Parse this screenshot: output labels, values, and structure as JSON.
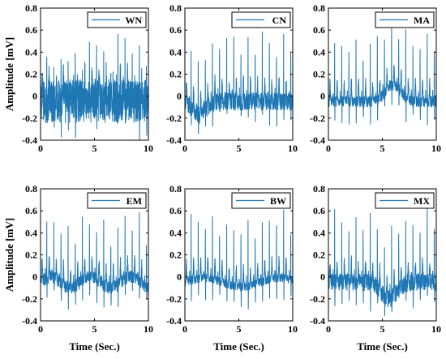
{
  "figure": {
    "line_color": "#1f77b4",
    "ylabel": "Amplitude [mV]",
    "xlabel": "Time (Sec.)"
  },
  "chart_data": [
    {
      "type": "line",
      "panel": "top-left",
      "series": [
        {
          "name": "WN"
        }
      ],
      "xlim": [
        0,
        10
      ],
      "ylim": [
        -0.4,
        0.8
      ],
      "xticks": [
        "0",
        "5",
        "10"
      ],
      "yticks": [
        "-0.4",
        "-0.2",
        "0",
        "0.2",
        "0.4",
        "0.6",
        "0.8"
      ],
      "r_peak_amplitude": 0.5,
      "noise_amplitude": 0.2,
      "legend": "top-right"
    },
    {
      "type": "line",
      "panel": "top-middle",
      "series": [
        {
          "name": "CN"
        }
      ],
      "xlim": [
        0,
        10
      ],
      "ylim": [
        -0.4,
        0.8
      ],
      "xticks": [
        "0",
        "5",
        "10"
      ],
      "yticks": [
        "-0.4",
        "-0.2",
        "0",
        "0.2",
        "0.4",
        "0.6",
        "0.8"
      ],
      "r_peak_amplitude": 0.6,
      "noise_amplitude": 0.08,
      "legend": "top-right"
    },
    {
      "type": "line",
      "panel": "top-right",
      "series": [
        {
          "name": "MA"
        }
      ],
      "xlim": [
        0,
        10
      ],
      "ylim": [
        -0.4,
        0.8
      ],
      "xticks": [
        "0",
        "5",
        "10"
      ],
      "yticks": [
        "-0.4",
        "-0.2",
        "0",
        "0.2",
        "0.4",
        "0.6",
        "0.8"
      ],
      "r_peak_amplitude": 0.6,
      "noise_amplitude": 0.05,
      "legend": "top-right"
    },
    {
      "type": "line",
      "panel": "bottom-left",
      "series": [
        {
          "name": "EM"
        }
      ],
      "xlim": [
        0,
        10
      ],
      "ylim": [
        -0.4,
        0.8
      ],
      "xticks": [
        "0",
        "5",
        "10"
      ],
      "yticks": [
        "-0.4",
        "-0.2",
        "0",
        "0.2",
        "0.4",
        "0.6",
        "0.8"
      ],
      "r_peak_amplitude": 0.6,
      "noise_amplitude": 0.06,
      "legend": "top-right"
    },
    {
      "type": "line",
      "panel": "bottom-middle",
      "series": [
        {
          "name": "BW"
        }
      ],
      "xlim": [
        0,
        10
      ],
      "ylim": [
        -0.4,
        0.8
      ],
      "xticks": [
        "0",
        "5",
        "10"
      ],
      "yticks": [
        "-0.4",
        "-0.2",
        "0",
        "0.2",
        "0.4",
        "0.6",
        "0.8"
      ],
      "r_peak_amplitude": 0.6,
      "noise_amplitude": 0.04,
      "legend": "top-right"
    },
    {
      "type": "line",
      "panel": "bottom-right",
      "series": [
        {
          "name": "MX"
        }
      ],
      "xlim": [
        0,
        10
      ],
      "ylim": [
        -0.4,
        0.8
      ],
      "xticks": [
        "0",
        "5",
        "10"
      ],
      "yticks": [
        "-0.4",
        "-0.2",
        "0",
        "0.2",
        "0.4",
        "0.6",
        "0.8"
      ],
      "r_peak_amplitude": 0.65,
      "noise_amplitude": 0.08,
      "legend": "top-right"
    }
  ]
}
